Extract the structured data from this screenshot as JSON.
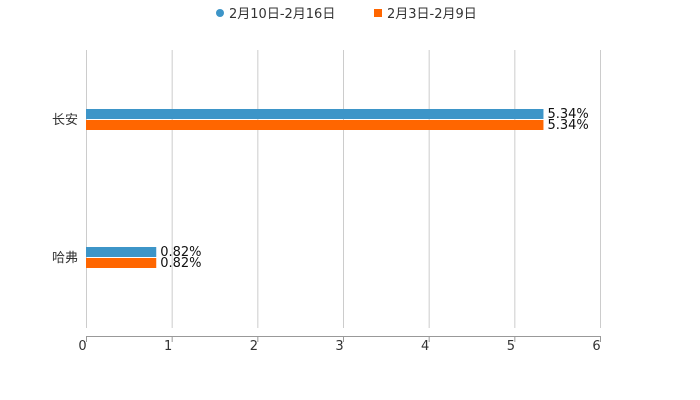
{
  "chart_data": {
    "type": "bar",
    "orientation": "horizontal",
    "categories": [
      "长安",
      "哈弗"
    ],
    "series": [
      {
        "name": "2月10日-2月16日",
        "values": [
          5.34,
          0.82
        ],
        "color": "#3d95c8",
        "labels": [
          "5.34%",
          "0.82%"
        ]
      },
      {
        "name": "2月3日-2月9日",
        "values": [
          5.34,
          0.82
        ],
        "color": "#ff6600",
        "labels": [
          "5.34%",
          "0.82%"
        ]
      }
    ],
    "xlim": [
      0,
      6
    ],
    "xticks": [
      "0",
      "1",
      "2",
      "3",
      "4",
      "5",
      "6"
    ],
    "grid": true,
    "legend_position": "top-center",
    "title": "",
    "xlabel": "",
    "ylabel": ""
  }
}
